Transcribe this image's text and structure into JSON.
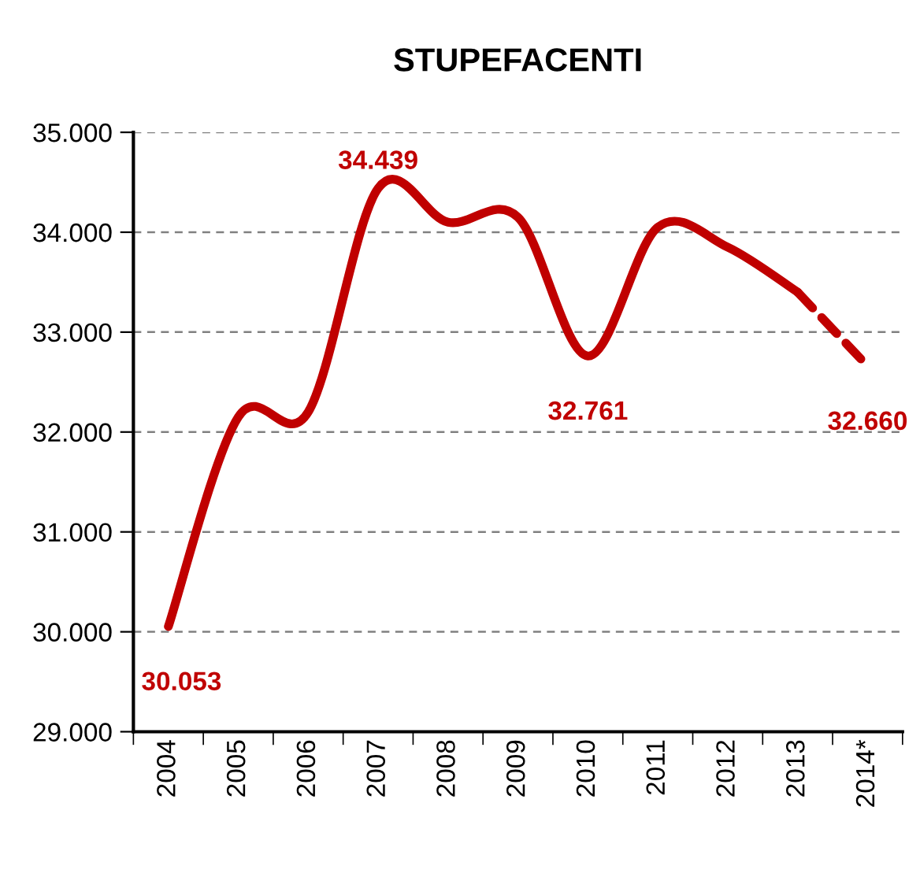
{
  "chart_data": {
    "type": "line",
    "title": "STUPEFACENTI",
    "categories": [
      "2004",
      "2005",
      "2006",
      "2007",
      "2008",
      "2009",
      "2010",
      "2011",
      "2012",
      "2013",
      "2014*"
    ],
    "series": [
      {
        "color": "#c00000",
        "line_style": "solid",
        "values": [
          30053,
          32150,
          32200,
          34439,
          34100,
          34150,
          32761,
          34050,
          33850,
          33400,
          null
        ],
        "value_labels": [
          "30.053",
          null,
          null,
          "34.439",
          null,
          null,
          "32.761",
          null,
          null,
          null,
          null
        ]
      },
      {
        "color": "#c00000",
        "line_style": "dashed",
        "values": [
          null,
          null,
          null,
          null,
          null,
          null,
          null,
          null,
          null,
          33400,
          32660
        ],
        "value_labels": [
          null,
          null,
          null,
          null,
          null,
          null,
          null,
          null,
          null,
          null,
          "32.660"
        ]
      }
    ],
    "ylim": [
      29000,
      35000
    ],
    "yticks": [
      {
        "value": 29000,
        "label": "29.000"
      },
      {
        "value": 30000,
        "label": "30.000"
      },
      {
        "value": 31000,
        "label": "31.000"
      },
      {
        "value": 32000,
        "label": "32.000"
      },
      {
        "value": 33000,
        "label": "33.000"
      },
      {
        "value": 34000,
        "label": "34.000"
      },
      {
        "value": 35000,
        "label": "35.000"
      }
    ],
    "grid": "y",
    "legend": false,
    "marker": "none"
  }
}
